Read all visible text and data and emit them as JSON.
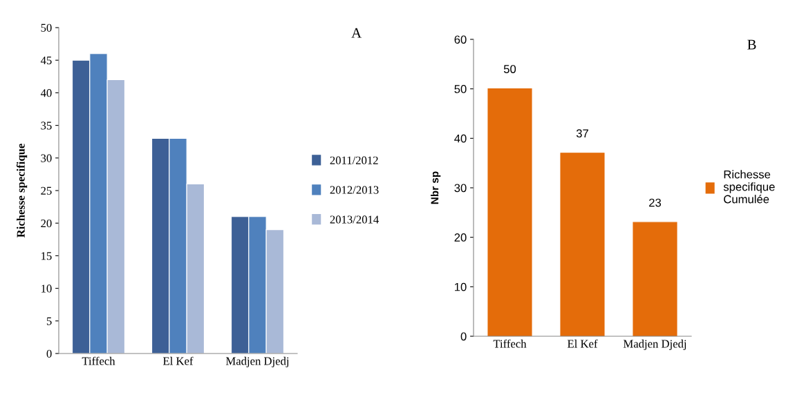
{
  "chart_data": [
    {
      "type": "bar",
      "categories": [
        "Tiffech",
        "El Kef",
        "Madjen Djedj"
      ],
      "ylabel": "Richesse specifique",
      "ylim": [
        0,
        50
      ],
      "yticks": [
        0,
        5,
        10,
        15,
        20,
        25,
        30,
        35,
        40,
        45,
        50
      ],
      "legend": "right",
      "grid": false,
      "annotations": [
        "A"
      ],
      "series": [
        {
          "name": "2011/2012",
          "color": "#3d6096",
          "values": [
            45,
            33,
            21
          ]
        },
        {
          "name": "2012/2013",
          "color": "#4f81bd",
          "values": [
            46,
            33,
            21
          ]
        },
        {
          "name": "2013/2014",
          "color": "#a9b9d7",
          "values": [
            42,
            26,
            19
          ]
        }
      ]
    },
    {
      "type": "bar",
      "categories": [
        "Tiffech",
        "El Kef",
        "Madjen Djedj"
      ],
      "ylabel": "Nbr sp",
      "ylim": [
        0,
        60
      ],
      "yticks": [
        0,
        10,
        20,
        30,
        40,
        50,
        60
      ],
      "legend": "right",
      "grid": false,
      "data_labels": true,
      "annotations": [
        "B"
      ],
      "series": [
        {
          "name": "Richesse specifique Cumulée",
          "color": "#e46c0a",
          "values": [
            50,
            37,
            23
          ]
        }
      ]
    }
  ]
}
